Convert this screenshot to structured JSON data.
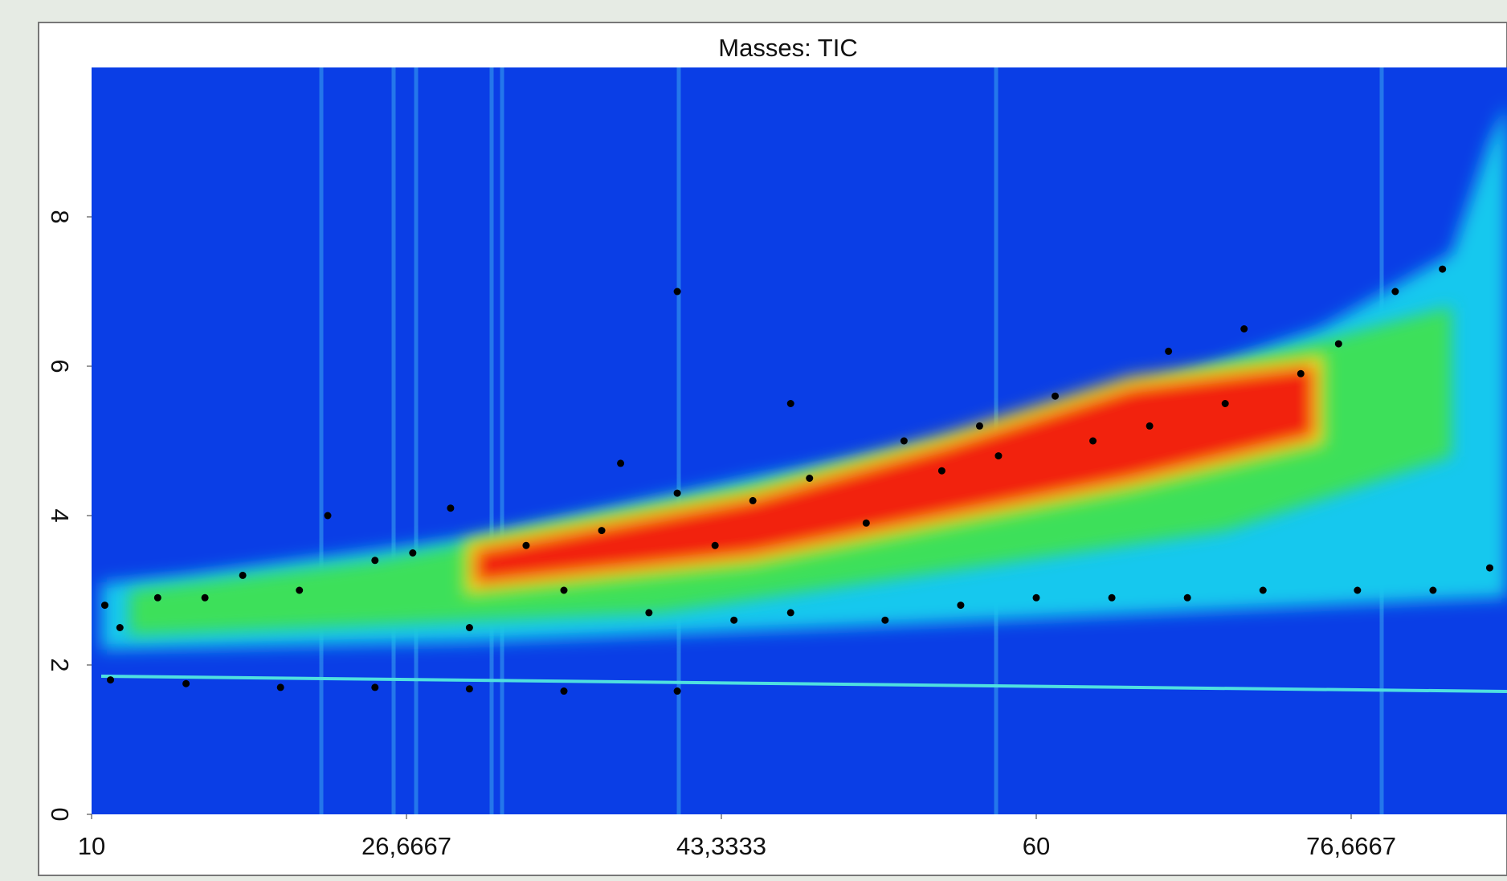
{
  "chart_data": {
    "type": "scatter",
    "title": "Masses: TIC",
    "xlim": [
      10,
      85
    ],
    "ylim": [
      0,
      10
    ],
    "xticks": [
      10,
      {
        "value": 26.6667,
        "label": "26,6667"
      },
      {
        "value": 43.3333,
        "label": "43,3333"
      },
      60,
      {
        "value": 76.6667,
        "label": "76,6667"
      }
    ],
    "yticks": [
      0,
      2,
      4,
      6,
      8
    ],
    "color": "#000000",
    "x": [
      10.7,
      11.5,
      13.5,
      16,
      18,
      21,
      22.5,
      25,
      27,
      29,
      30,
      33,
      35,
      37,
      38,
      39.5,
      41,
      43,
      44,
      45,
      47,
      48,
      51,
      52,
      53,
      55,
      56,
      57,
      58,
      60,
      61,
      63,
      64,
      66,
      67,
      68,
      70,
      71,
      72,
      74,
      76,
      77,
      79,
      81,
      81.5,
      84,
      41,
      47,
      11,
      15,
      20,
      25,
      30,
      35,
      41
    ],
    "values": [
      2.8,
      2.5,
      2.9,
      2.9,
      3.2,
      3.0,
      4.0,
      3.4,
      3.5,
      4.1,
      2.5,
      3.6,
      3.0,
      3.8,
      4.7,
      2.7,
      4.3,
      3.6,
      2.6,
      4.2,
      2.7,
      4.5,
      3.9,
      2.6,
      5.0,
      4.6,
      2.8,
      5.2,
      4.8,
      2.9,
      5.6,
      5.0,
      2.9,
      5.2,
      6.2,
      2.9,
      5.5,
      6.5,
      3.0,
      5.9,
      6.3,
      3.0,
      7.0,
      3.0,
      7.3,
      3.3,
      7.0,
      5.5,
      1.8,
      1.75,
      1.7,
      1.7,
      1.68,
      1.65,
      1.65
    ]
  }
}
